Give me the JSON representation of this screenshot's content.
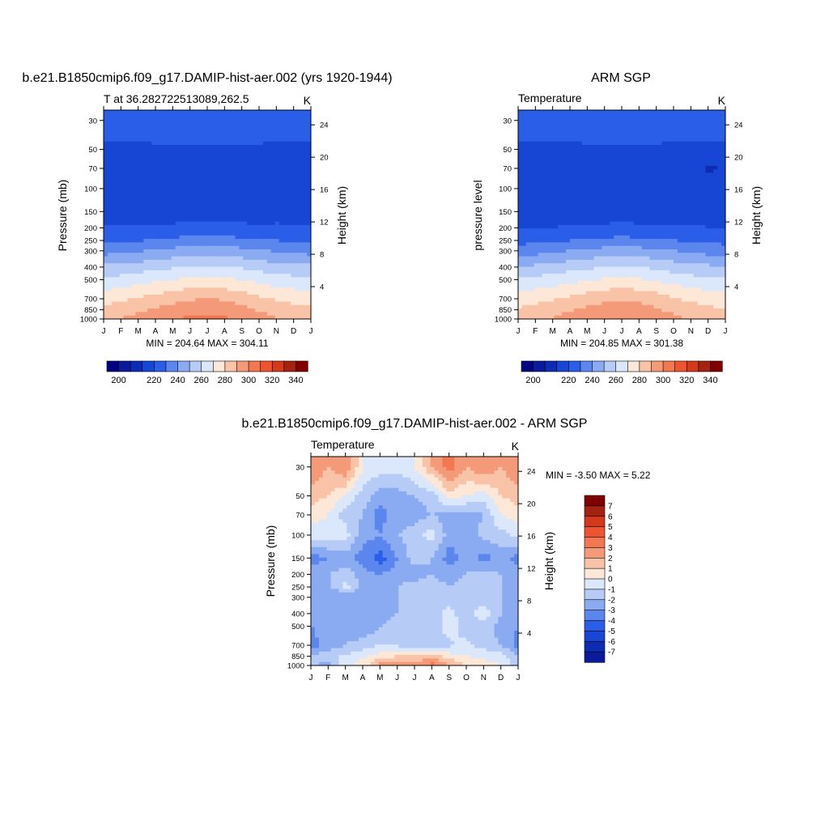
{
  "chart_data": [
    {
      "type": "heatmap",
      "title": "b.e21.B1850cmip6.f09_g17.DAMIP-hist-aer.002 (yrs 1920-1944)",
      "subtitle": "T at 36.282722513089,262.5",
      "units": "K",
      "ylabel": "Pressure (mb)",
      "ylabel_right": "Height (km)",
      "x": [
        "J",
        "F",
        "M",
        "A",
        "M",
        "J",
        "J",
        "A",
        "S",
        "O",
        "N",
        "D",
        "J"
      ],
      "y_ticks": [
        30,
        50,
        70,
        100,
        150,
        200,
        250,
        300,
        400,
        500,
        700,
        850,
        1000
      ],
      "y_right_ticks": [
        "24",
        "20",
        "16",
        "12",
        "8",
        "4"
      ],
      "ylim": [
        1000,
        25
      ],
      "min_max": "MIN = 204.64 MAX = 304.11",
      "levels_bottom_to_top": [
        1000,
        850,
        700,
        500,
        400,
        300,
        250,
        200,
        150,
        100,
        70,
        50,
        30
      ],
      "values": [
        [
          288,
          291,
          294,
          297,
          300,
          302,
          304,
          302,
          298,
          294,
          291,
          289,
          288
        ],
        [
          283,
          285,
          288,
          291,
          294,
          296,
          297,
          296,
          293,
          289,
          286,
          284,
          283
        ],
        [
          276,
          278,
          281,
          284,
          287,
          289,
          290,
          289,
          286,
          282,
          279,
          277,
          276
        ],
        [
          262,
          264,
          266,
          268,
          270,
          272,
          273,
          272,
          270,
          267,
          265,
          263,
          262
        ],
        [
          252,
          253,
          255,
          257,
          259,
          261,
          262,
          261,
          259,
          256,
          254,
          253,
          252
        ],
        [
          236,
          237,
          239,
          241,
          243,
          245,
          246,
          245,
          243,
          241,
          239,
          237,
          236
        ],
        [
          228,
          228,
          229,
          231,
          232,
          233,
          234,
          233,
          232,
          231,
          230,
          229,
          228
        ],
        [
          221,
          221,
          221,
          222,
          223,
          224,
          224,
          224,
          223,
          222,
          222,
          221,
          221
        ],
        [
          217,
          217,
          216,
          214,
          212,
          211,
          212,
          212,
          213,
          214,
          215,
          216,
          217
        ],
        [
          214,
          214,
          214,
          212,
          211,
          211,
          211,
          211,
          211,
          211,
          212,
          213,
          214
        ],
        [
          215,
          215,
          215,
          213,
          212,
          211,
          211,
          211,
          212,
          213,
          214,
          215,
          215
        ],
        [
          219,
          219,
          219,
          219,
          219,
          219,
          219,
          219,
          219,
          219,
          219,
          219,
          219
        ],
        [
          223,
          223,
          223,
          224,
          225,
          226,
          227,
          226,
          225,
          224,
          223,
          223,
          223
        ]
      ],
      "colorbar": {
        "labels": [
          "200",
          "220",
          "240",
          "260",
          "280",
          "300",
          "320",
          "340"
        ],
        "levels": [
          195,
          200,
          205,
          210,
          220,
          230,
          240,
          250,
          260,
          270,
          280,
          290,
          300,
          310,
          320,
          330,
          340,
          345
        ]
      }
    },
    {
      "type": "heatmap",
      "title": "ARM SGP",
      "subtitle": "Temperature",
      "units": "K",
      "ylabel": "pressure level",
      "ylabel_right": "Height (km)",
      "x": [
        "J",
        "F",
        "M",
        "A",
        "M",
        "J",
        "J",
        "A",
        "S",
        "O",
        "N",
        "D",
        "J"
      ],
      "y_ticks": [
        30,
        50,
        70,
        100,
        150,
        200,
        250,
        300,
        400,
        500,
        700,
        850,
        1000
      ],
      "y_right_ticks": [
        "24",
        "20",
        "16",
        "12",
        "8",
        "4"
      ],
      "ylim": [
        1000,
        25
      ],
      "min_max": "MIN = 204.85 MAX = 301.38",
      "levels_bottom_to_top": [
        1000,
        850,
        700,
        500,
        400,
        300,
        250,
        200,
        150,
        100,
        70,
        50,
        30
      ],
      "values": [
        [
          285,
          288,
          291,
          294,
          297,
          299,
          301,
          299,
          296,
          292,
          289,
          286,
          285
        ],
        [
          281,
          283,
          286,
          289,
          292,
          294,
          295,
          294,
          291,
          288,
          285,
          282,
          281
        ],
        [
          275,
          277,
          279,
          282,
          285,
          288,
          289,
          288,
          285,
          281,
          278,
          276,
          275
        ],
        [
          261,
          263,
          265,
          267,
          269,
          271,
          272,
          271,
          269,
          266,
          264,
          262,
          261
        ],
        [
          251,
          252,
          254,
          256,
          258,
          260,
          261,
          260,
          258,
          255,
          253,
          252,
          251
        ],
        [
          235,
          236,
          238,
          240,
          242,
          244,
          245,
          244,
          242,
          240,
          238,
          236,
          235
        ],
        [
          227,
          227,
          228,
          230,
          231,
          232,
          233,
          232,
          231,
          230,
          229,
          228,
          227
        ],
        [
          220,
          220,
          220,
          221,
          222,
          223,
          223,
          223,
          222,
          221,
          221,
          220,
          220
        ],
        [
          218,
          218,
          216,
          214,
          212,
          212,
          213,
          212,
          213,
          214,
          215,
          217,
          218
        ],
        [
          215,
          214,
          212,
          211,
          210,
          211,
          211,
          210,
          211,
          211,
          212,
          214,
          215
        ],
        [
          210,
          212,
          214,
          212,
          211,
          211,
          211,
          211,
          212,
          213,
          214,
          209,
          210
        ],
        [
          219,
          219,
          219,
          219,
          219,
          219,
          219,
          219,
          219,
          219,
          219,
          219,
          219
        ],
        [
          222,
          222,
          222,
          223,
          224,
          225,
          226,
          225,
          224,
          223,
          222,
          222,
          222
        ]
      ],
      "colorbar": {
        "labels": [
          "200",
          "220",
          "240",
          "260",
          "280",
          "300",
          "320",
          "340"
        ],
        "levels": [
          195,
          200,
          205,
          210,
          220,
          230,
          240,
          250,
          260,
          270,
          280,
          290,
          300,
          310,
          320,
          330,
          340,
          345
        ]
      }
    },
    {
      "type": "heatmap",
      "title": "b.e21.B1850cmip6.f09_g17.DAMIP-hist-aer.002 - ARM SGP",
      "subtitle": "Temperature",
      "units": "K",
      "ylabel": "Pressure (mb)",
      "ylabel_right": "Height (km)",
      "x": [
        "J",
        "F",
        "M",
        "A",
        "M",
        "J",
        "J",
        "A",
        "S",
        "O",
        "N",
        "D",
        "J"
      ],
      "y_ticks": [
        30,
        50,
        70,
        100,
        150,
        200,
        250,
        300,
        400,
        500,
        700,
        850,
        1000
      ],
      "y_right_ticks": [
        "24",
        "20",
        "16",
        "12",
        "8",
        "4"
      ],
      "ylim": [
        1000,
        25
      ],
      "min_max": "MIN =  -3.50 MAX =   5.22",
      "levels_bottom_to_top": [
        1000,
        850,
        700,
        500,
        400,
        300,
        250,
        200,
        150,
        100,
        70,
        50,
        30
      ],
      "values": [
        [
          -1.0,
          -1.2,
          0.5,
          1.5,
          3.5,
          4.0,
          3.5,
          4.5,
          3.0,
          2.0,
          1.5,
          1.0,
          -1.0
        ],
        [
          -0.8,
          -0.5,
          0.2,
          0.8,
          1.5,
          2.0,
          2.0,
          2.5,
          1.5,
          1.0,
          0.8,
          0.5,
          -0.8
        ],
        [
          -2.5,
          -1.5,
          -1.0,
          -0.5,
          0.0,
          -0.2,
          -0.3,
          -0.5,
          -0.2,
          0.3,
          -0.5,
          -1.0,
          -2.5
        ],
        [
          -2.0,
          -1.5,
          -1.5,
          -2.0,
          -1.0,
          -0.5,
          -1.0,
          -0.5,
          0.5,
          -0.5,
          -0.2,
          -1.5,
          -2.0
        ],
        [
          -1.5,
          -2.0,
          -1.5,
          -1.8,
          -1.5,
          -1.0,
          -0.5,
          -0.5,
          0.3,
          -0.5,
          0.5,
          -1.0,
          -1.5
        ],
        [
          -1.5,
          -2.0,
          -2.0,
          -1.5,
          -1.0,
          -1.0,
          -0.5,
          -0.5,
          -0.5,
          -0.5,
          -0.5,
          -1.0,
          -1.5
        ],
        [
          -2.0,
          -1.5,
          0.5,
          -1.5,
          -1.5,
          -1.0,
          -0.5,
          -0.5,
          -1.0,
          -0.5,
          -0.5,
          -1.0,
          -2.0
        ],
        [
          -1.5,
          -1.0,
          -0.5,
          -1.5,
          -2.0,
          -1.5,
          -1.5,
          -1.0,
          -1.5,
          -1.0,
          -0.5,
          -1.0,
          -1.5
        ],
        [
          -2.5,
          -2.0,
          -1.5,
          -2.5,
          -3.5,
          -2.0,
          -0.5,
          -1.0,
          -2.5,
          -1.5,
          -2.5,
          -1.5,
          -2.5
        ],
        [
          0.5,
          0.5,
          0.5,
          -1.5,
          -2.0,
          -1.0,
          -0.5,
          0.5,
          -1.5,
          -2.0,
          -0.5,
          -0.5,
          0.5
        ],
        [
          1.5,
          1.0,
          -0.5,
          -1.0,
          -2.5,
          -1.5,
          -1.5,
          -1.0,
          -1.5,
          -1.5,
          -1.0,
          1.0,
          1.5
        ],
        [
          2.5,
          2.0,
          1.0,
          -0.5,
          -1.5,
          -1.5,
          -1.0,
          -0.5,
          1.5,
          1.0,
          0.5,
          2.0,
          2.5
        ],
        [
          4.0,
          3.0,
          4.0,
          1.0,
          0.5,
          0.5,
          1.0,
          3.0,
          4.5,
          3.0,
          4.0,
          3.0,
          4.0
        ]
      ],
      "colorbar": {
        "labels": [
          "7",
          "6",
          "5",
          "4",
          "3",
          "2",
          "1",
          "0",
          "-1",
          "-2",
          "-3",
          "-4",
          "-5",
          "-6",
          "-7"
        ],
        "levels": [
          -8,
          -7,
          -6,
          -5,
          -4,
          -3,
          -2,
          -1,
          0,
          1,
          2,
          3,
          4,
          5,
          6,
          7,
          8
        ]
      }
    }
  ],
  "colors": {
    "abs_scale": [
      "#000080",
      "#0a1a9a",
      "#0d2cb5",
      "#1846d4",
      "#2a5ee8",
      "#5a86ee",
      "#8aaaf2",
      "#b6ccf6",
      "#dbe7fa",
      "#fde7d6",
      "#f9c3a8",
      "#f59a78",
      "#f17850",
      "#ec5530",
      "#d33a1c",
      "#a52210",
      "#800000"
    ],
    "diff_scale": [
      "#000080",
      "#0a1a9a",
      "#0d2cb5",
      "#1846d4",
      "#2a5ee8",
      "#5a86ee",
      "#8aaaf2",
      "#b6ccf6",
      "#dbe7fa",
      "#fde7d6",
      "#f9c3a8",
      "#f59a78",
      "#f17850",
      "#ec5530",
      "#d33a1c",
      "#a52210",
      "#800000"
    ]
  }
}
